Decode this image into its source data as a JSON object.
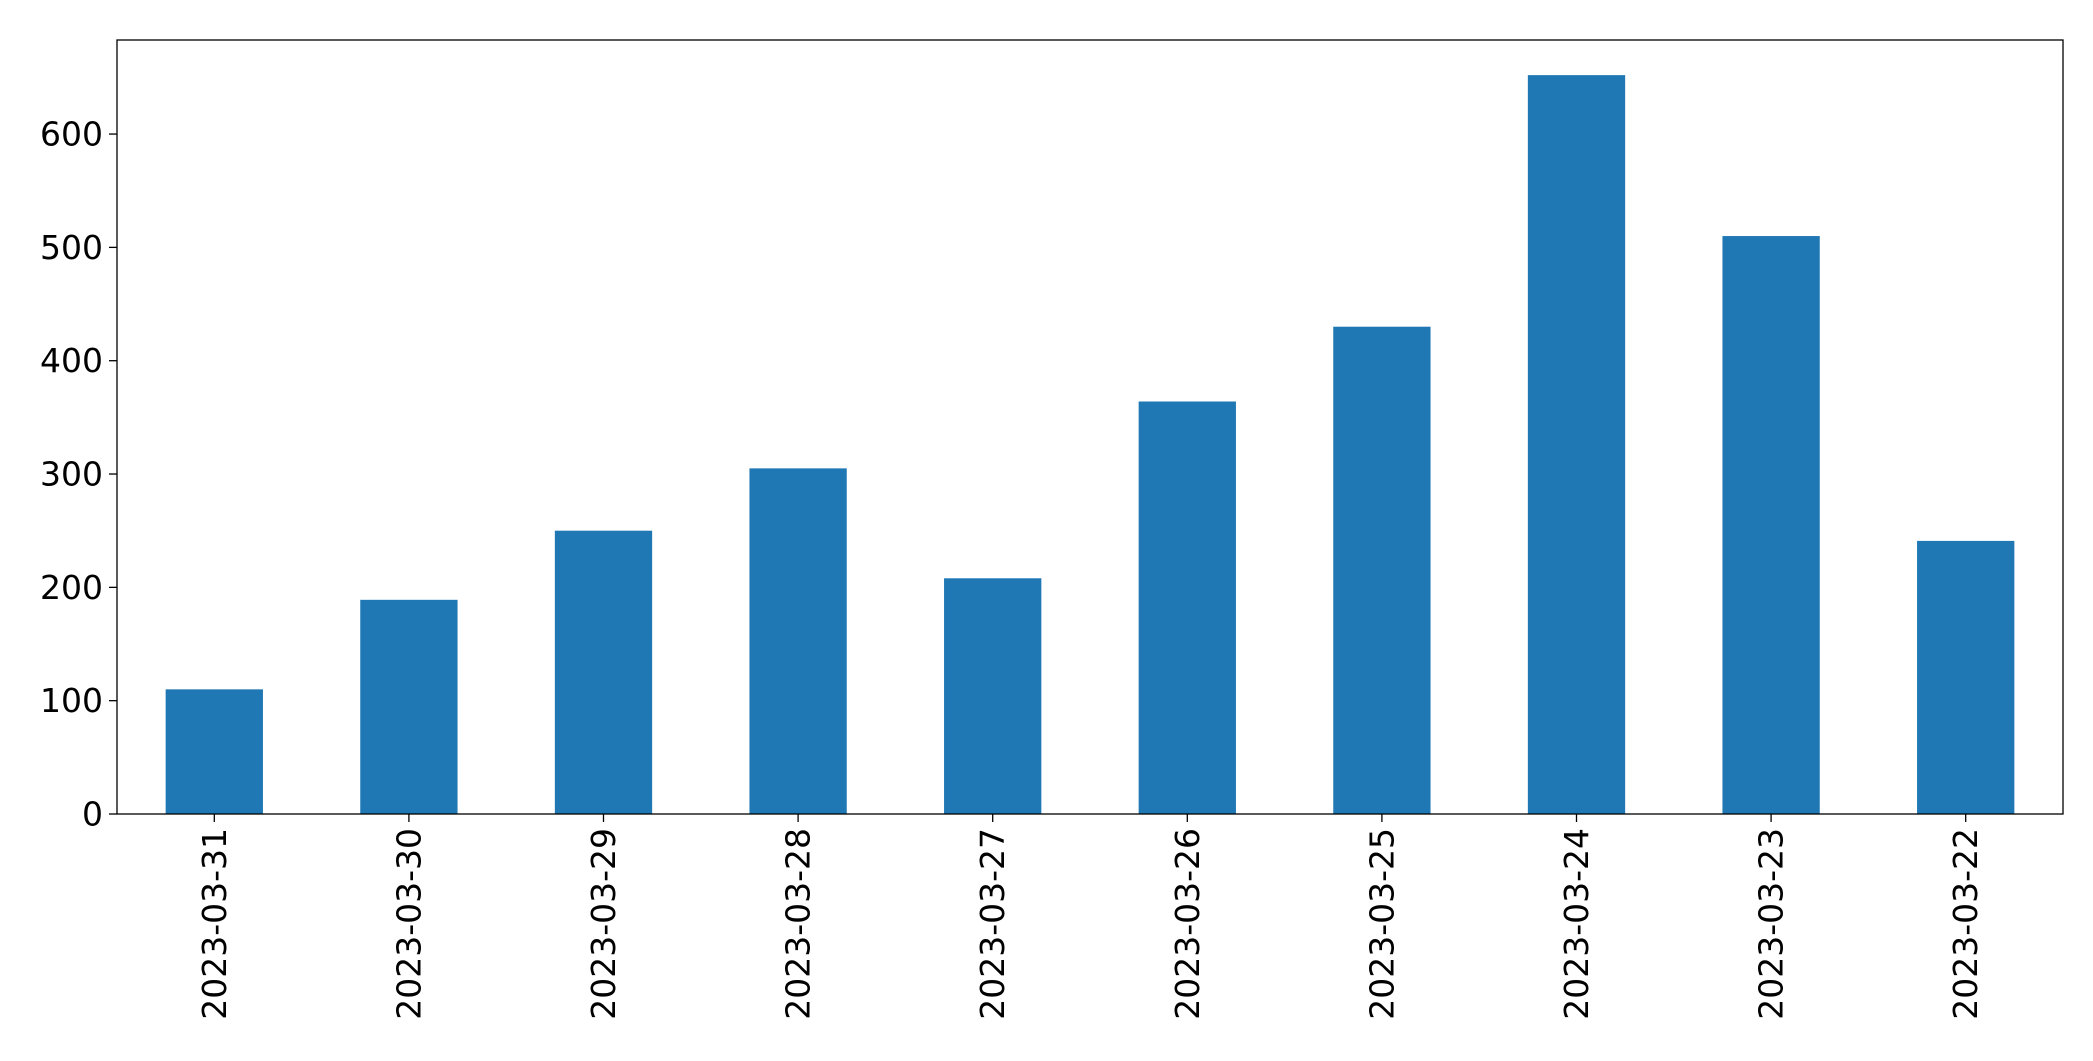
{
  "chart_data": {
    "type": "bar",
    "title": "",
    "xlabel": "",
    "ylabel": "",
    "categories": [
      "2023-03-31",
      "2023-03-30",
      "2023-03-29",
      "2023-03-28",
      "2023-03-27",
      "2023-03-26",
      "2023-03-25",
      "2023-03-24",
      "2023-03-23",
      "2023-03-22"
    ],
    "values": [
      110,
      189,
      250,
      305,
      208,
      364,
      430,
      652,
      510,
      241
    ],
    "ylim": [
      0,
      683
    ],
    "yticks": [
      "0",
      "100",
      "200",
      "300",
      "400",
      "500",
      "600"
    ],
    "grid": false,
    "legend": "none",
    "bar_color": "#1f77b4"
  }
}
